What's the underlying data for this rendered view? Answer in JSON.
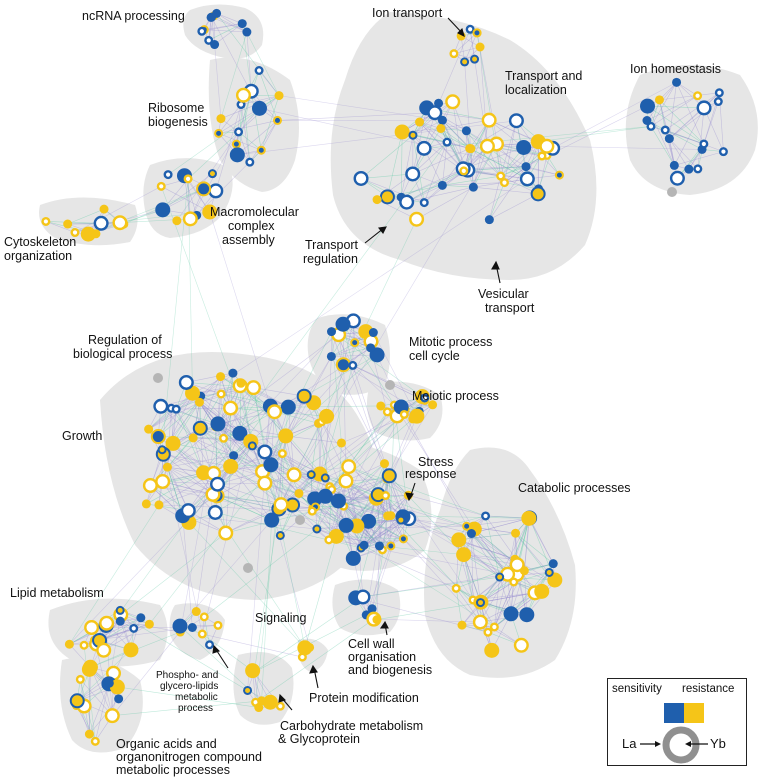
{
  "labels": {
    "ncrna": "ncRNA processing",
    "ion_transport": "Ion transport",
    "ion_homeostasis": "Ion homeostasis",
    "transport_localization": [
      "Transport and",
      "localization"
    ],
    "ribosome": [
      "Ribosome",
      "biogenesis"
    ],
    "macromolecular": [
      "Macromolecular",
      "complex",
      "assembly"
    ],
    "cytoskeleton": [
      "Cytoskeleton",
      "organization"
    ],
    "transport_regulation": [
      "Transport",
      "regulation"
    ],
    "vesicular": [
      "Vesicular",
      "transport"
    ],
    "regulation_bio": [
      "Regulation of",
      "biological process"
    ],
    "mitotic": [
      "Mitotic process",
      "cell cycle"
    ],
    "meiotic": "Meiotic process",
    "growth": "Growth",
    "stress": [
      "Stress",
      "response"
    ],
    "catabolic": "Catabolic processes",
    "lipid": "Lipid metabolism",
    "signaling": "Signaling",
    "cell_wall": [
      "Cell wall",
      "organisation",
      "and biogenesis"
    ],
    "phospho": [
      "Phospho- and",
      "glycero-lipids",
      "metabolic",
      "process"
    ],
    "protein_mod": "Protein modification",
    "carbohydrate": [
      "Carbohydrate metabolism",
      "& Glycoprotein"
    ],
    "organic_acids": [
      "Organic acids and",
      "organonitrogen compound",
      "metabolic processes"
    ]
  },
  "legend": {
    "sensitivity": "sensitivity",
    "resistance": "resistance",
    "la": "La",
    "yb": "Yb"
  },
  "colors": {
    "sensitivity": "#1f5fad",
    "resistance": "#f5c518",
    "cluster_bg": "#e6e6e6",
    "edge_purple": "#9a8fd0",
    "edge_green": "#5ec9a4",
    "unassigned": "#b5b5b5"
  }
}
